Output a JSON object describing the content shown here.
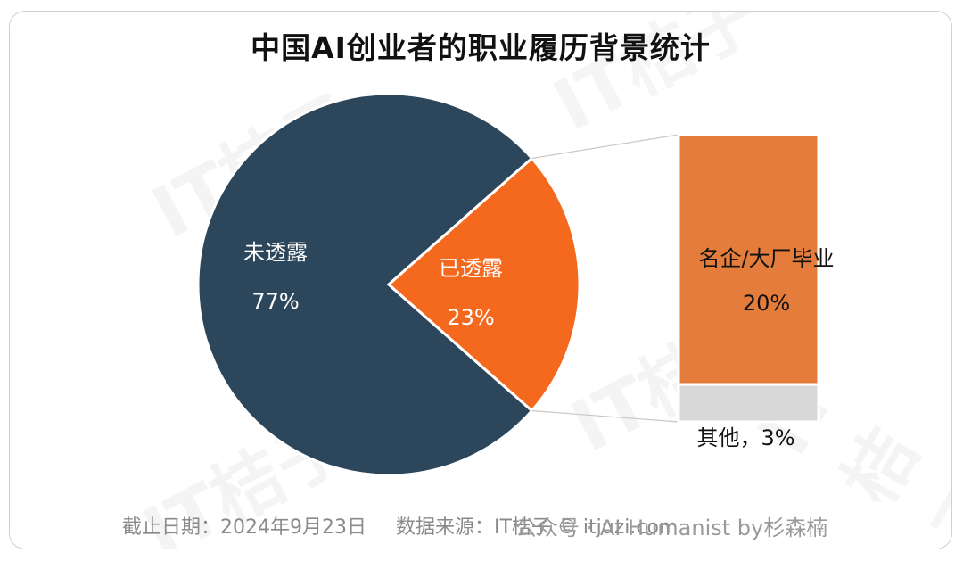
{
  "title": "中国AI创业者的职业履历背景统计",
  "chart_data": {
    "type": "pie",
    "title": "中国AI创业者的职业履历背景统计",
    "slices": [
      {
        "label": "未透露",
        "value": 77,
        "display": "77%",
        "color": "#2c465b"
      },
      {
        "label": "已透露",
        "value": 23,
        "display": "23%",
        "color": "#f4691e"
      }
    ],
    "breakdown": {
      "of": "已透露",
      "segments": [
        {
          "label": "名企/大厂毕业",
          "value": 20,
          "display": "20%",
          "color": "#e47c3c"
        },
        {
          "label": "其他",
          "value": 3,
          "display": "其他，3%",
          "color": "#d8d8d8"
        }
      ]
    }
  },
  "footer": {
    "date": "截止日期：2024年9月23日",
    "source": "数据来源：IT桔子 © itjuzi.com"
  },
  "watermark": "公众号 · AI Humanist by杉森楠",
  "background_watermark": "IT桔子"
}
